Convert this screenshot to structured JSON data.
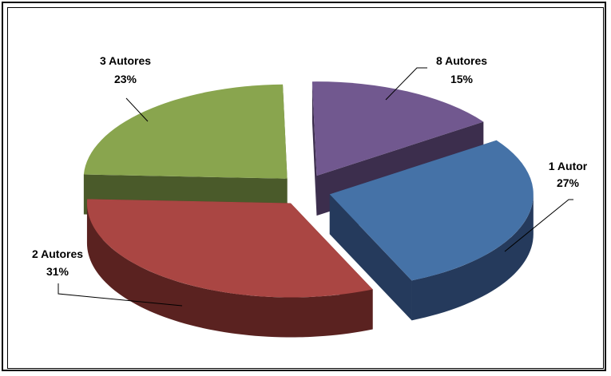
{
  "chart_data": {
    "type": "pie",
    "style": "3d-exploded",
    "title": "",
    "slices": [
      {
        "label": "1 Autor",
        "pct_text": "27%",
        "value": 27,
        "color": "#4572a7",
        "side_color": "#253a5c"
      },
      {
        "label": "2 Autores",
        "pct_text": "31%",
        "value": 31,
        "color": "#aa4643",
        "side_color": "#5a2220"
      },
      {
        "label": "3 Autores",
        "pct_text": "23%",
        "value": 23,
        "color": "#89a54e",
        "side_color": "#4a5a2a"
      },
      {
        "label": "8 Autores",
        "pct_text": "15%",
        "value": 15,
        "color": "#71588f",
        "side_color": "#3c2e4d"
      }
    ]
  }
}
